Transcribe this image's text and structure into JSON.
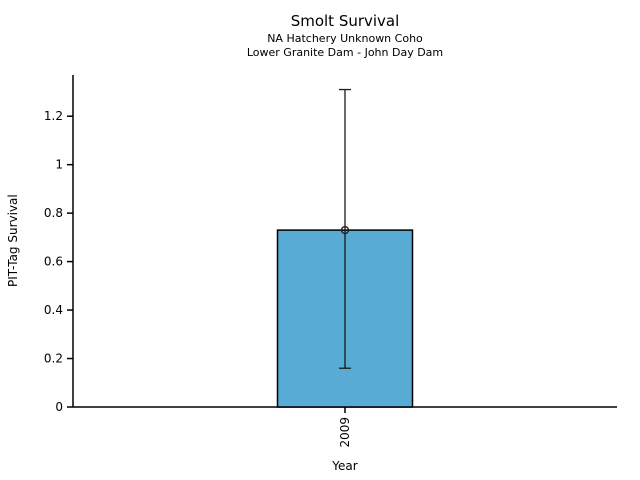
{
  "chart_data": {
    "type": "bar",
    "title": "Smolt Survival",
    "subtitle_lines": [
      "NA Hatchery Unknown Coho",
      "Lower Granite Dam - John Day Dam"
    ],
    "xlabel": "Year",
    "ylabel": "PIT-Tag Survival",
    "categories": [
      "2009"
    ],
    "values": [
      0.73
    ],
    "error_bars": [
      {
        "low": 0.16,
        "high": 1.31
      }
    ],
    "yticks": [
      0,
      0.2,
      0.4,
      0.6,
      0.8,
      1,
      1.2
    ],
    "ytick_labels": [
      "0",
      "0.2",
      "0.4",
      "0.6",
      "0.8",
      "1",
      "1.2"
    ],
    "ylim": [
      0,
      1.37
    ],
    "grid": false,
    "legend": null,
    "marker": "open-circle",
    "bar_color": "#58ABD4",
    "bar_edge_color": "#000000",
    "error_color": "#1a1a1a",
    "axis_color": "#000000",
    "text_color": "#000000",
    "background_color": "#ffffff"
  }
}
